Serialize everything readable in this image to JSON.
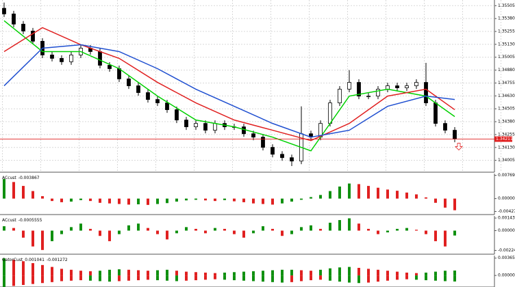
{
  "chart_data": [
    {
      "type": "candlestick",
      "open": [
        1.3548,
        1.35425,
        1.35326,
        1.35259,
        1.3516,
        1.35027,
        1.34994,
        1.34961,
        1.35027,
        1.35093,
        1.3506,
        1.34927,
        1.34894,
        1.34795,
        1.34728,
        1.34662,
        1.34595,
        1.34562,
        1.34496,
        1.34396,
        1.3433,
        1.34363,
        1.34297,
        1.34363,
        1.3433,
        1.3433,
        1.34263,
        1.3423,
        1.34131,
        1.34064,
        1.34031,
        1.33998,
        1.34263,
        1.3423,
        1.34363,
        1.34562,
        1.34695,
        1.34761,
        1.34628,
        1.34628,
        1.34695,
        1.34728,
        1.34708,
        1.34728,
        1.34761,
        1.34562,
        1.34363,
        1.34297
      ],
      "high": [
        1.35535,
        1.35455,
        1.35356,
        1.35289,
        1.3519,
        1.35057,
        1.35024,
        1.35057,
        1.35123,
        1.35123,
        1.3509,
        1.34957,
        1.34924,
        1.34825,
        1.34758,
        1.34692,
        1.34625,
        1.34592,
        1.34526,
        1.34426,
        1.34393,
        1.34393,
        1.34393,
        1.34393,
        1.3436,
        1.3436,
        1.34293,
        1.3426,
        1.34161,
        1.34094,
        1.34061,
        1.34529,
        1.34293,
        1.34393,
        1.34592,
        1.34725,
        1.3488,
        1.34791,
        1.34658,
        1.34725,
        1.34758,
        1.34758,
        1.34758,
        1.34791,
        1.3495,
        1.34592,
        1.34393,
        1.34327
      ],
      "low": [
        1.35395,
        1.35296,
        1.35229,
        1.3513,
        1.34997,
        1.34964,
        1.34931,
        1.34931,
        1.34997,
        1.3503,
        1.34897,
        1.34864,
        1.34765,
        1.34698,
        1.34632,
        1.34565,
        1.34532,
        1.34466,
        1.34366,
        1.343,
        1.343,
        1.34267,
        1.34267,
        1.343,
        1.343,
        1.34233,
        1.342,
        1.34101,
        1.34034,
        1.34001,
        1.3395,
        1.33968,
        1.342,
        1.342,
        1.34333,
        1.34532,
        1.34665,
        1.34598,
        1.34598,
        1.34598,
        1.34665,
        1.34678,
        1.34678,
        1.34698,
        1.34532,
        1.34333,
        1.34267,
        1.34181
      ],
      "close": [
        1.35425,
        1.35326,
        1.35259,
        1.3516,
        1.35027,
        1.34994,
        1.34961,
        1.35027,
        1.35093,
        1.3506,
        1.34927,
        1.34894,
        1.34795,
        1.34728,
        1.34662,
        1.34595,
        1.34562,
        1.34496,
        1.34396,
        1.3433,
        1.34363,
        1.34297,
        1.34363,
        1.3433,
        1.3433,
        1.34263,
        1.3423,
        1.34131,
        1.34064,
        1.34031,
        1.33998,
        1.34263,
        1.3423,
        1.34363,
        1.34562,
        1.34695,
        1.34761,
        1.34628,
        1.34628,
        1.34695,
        1.34728,
        1.34708,
        1.34728,
        1.34761,
        1.34562,
        1.34363,
        1.34297,
        1.34211
      ],
      "line_x": [
        0,
        4,
        8,
        12,
        16,
        20,
        24,
        28,
        32,
        36,
        40,
        44,
        47
      ],
      "lines": [
        {
          "color": "#00d000",
          "values": [
            1.35359,
            1.3506,
            1.3506,
            1.34894,
            1.34628,
            1.34396,
            1.3433,
            1.3423,
            1.34097,
            1.34628,
            1.34695,
            1.34628,
            1.34429
          ]
        },
        {
          "color": "#e02020",
          "values": [
            1.3506,
            1.35292,
            1.35126,
            1.34994,
            1.34761,
            1.34562,
            1.34396,
            1.34297,
            1.34197,
            1.34363,
            1.34628,
            1.34695,
            1.34496
          ]
        },
        {
          "color": "#1f4fd0",
          "values": [
            1.34728,
            1.35093,
            1.35126,
            1.3506,
            1.34894,
            1.34695,
            1.34529,
            1.34363,
            1.3423,
            1.34297,
            1.34529,
            1.34628,
            1.34595
          ]
        }
      ],
      "current_price": 1.34211,
      "ylim": [
        1.3389,
        1.3556
      ],
      "yticks": [
        1.35505,
        {
          "value": 1.3538,
          "label": "1.35380"
        },
        1.35255,
        {
          "value": 1.3513,
          "label": "1.35130"
        },
        1.35005,
        {
          "value": 1.3488,
          "label": "1.34880"
        },
        1.34755,
        {
          "value": 1.3463,
          "label": "1.34630"
        },
        1.34505,
        {
          "value": 1.3438,
          "label": "1.34380"
        },
        1.34255,
        {
          "value": 1.3413,
          "label": "1.34130"
        },
        1.34005
      ],
      "grid": true
    },
    {
      "type": "histogram",
      "title": "ACcust",
      "current": -0.003867,
      "up_color": "#109010",
      "down_color": "#e02020",
      "values": [
        0.0065,
        0.0055,
        0.0042,
        0.0025,
        0.0008,
        -0.0008,
        -0.0012,
        -0.001,
        -0.0005,
        -0.0008,
        -0.0014,
        -0.0016,
        -0.0018,
        -0.002,
        -0.0019,
        -0.0021,
        -0.0018,
        -0.0015,
        -0.001,
        -0.0006,
        -0.0004,
        -0.0006,
        -0.0008,
        -0.0005,
        -0.0009,
        -0.0012,
        -0.0016,
        -0.0018,
        -0.002,
        -0.0016,
        -0.001,
        -0.0004,
        0.0005,
        0.0012,
        0.0025,
        0.004,
        0.005,
        0.0048,
        0.0042,
        0.0036,
        0.003,
        0.0026,
        0.002,
        0.0014,
        0.0004,
        -0.0014,
        -0.003,
        -0.003867
      ],
      "ylim": [
        -0.0053,
        0.0083
      ],
      "yticks": [
        0.007698,
        {
          "value": 0,
          "label": "0.000000"
        },
        -0.004271
      ]
    },
    {
      "type": "histogram",
      "title": "ACcust",
      "current": -0.0005555,
      "up_color": "#109010",
      "down_color": "#e02020",
      "values": [
        0.0005,
        0.0003,
        -0.0008,
        -0.0018,
        -0.0022,
        -0.0012,
        -0.0004,
        0.0004,
        0.0008,
        0.0002,
        -0.0006,
        -0.0012,
        -0.0004,
        0.0006,
        0.0008,
        0.0003,
        -0.0004,
        -0.001,
        -0.0003,
        0.0004,
        0.0002,
        -0.0003,
        0.0003,
        0.0002,
        -0.0004,
        -0.0008,
        -0.0003,
        0.0005,
        0.0002,
        -0.0006,
        -0.0004,
        0.0004,
        0.0006,
        0.0002,
        0.0009,
        0.0012,
        0.0014,
        0.0008,
        0.0002,
        -0.0004,
        -0.0002,
        0.0002,
        0.0003,
        0.0001,
        -0.0004,
        -0.0012,
        -0.0018,
        -0.0005555
      ],
      "ylim": [
        -0.00268,
        0.00167
      ],
      "yticks": [
        {
          "value": 0.001431,
          "label": "0.0014310"
        },
        {
          "value": 0,
          "label": "0.0000000"
        },
        -0.0022492
      ]
    },
    {
      "type": "gator",
      "title": "GatorCust",
      "current": [
        0.001041,
        -0.001272
      ],
      "up_color": "#109010",
      "down_color": "#e02020",
      "series": [
        {
          "values": [
            0.0036,
            0.0033,
            0.003,
            0.0026,
            0.0022,
            0.0018,
            0.0014,
            0.0012,
            0.001,
            0.0009,
            0.001,
            0.0012,
            0.0013,
            0.0012,
            0.0011,
            0.001,
            0.0011,
            0.0012,
            0.001,
            0.0008,
            0.0007,
            0.0006,
            0.0005,
            0.0006,
            0.0007,
            0.0008,
            0.0009,
            0.001,
            0.0011,
            0.0012,
            0.0012,
            0.0011,
            0.001,
            0.0012,
            0.0015,
            0.0017,
            0.0018,
            0.0016,
            0.0014,
            0.0012,
            0.001,
            0.0008,
            0.0006,
            0.0005,
            0.0006,
            0.0008,
            0.001,
            0.001041
          ]
        },
        {
          "values": [
            -0.0024,
            -0.0022,
            -0.002,
            -0.0018,
            -0.0016,
            -0.0014,
            -0.0012,
            -0.0011,
            -0.001,
            -0.0011,
            -0.0012,
            -0.0013,
            -0.0012,
            -0.0011,
            -0.001,
            -0.0009,
            -0.001,
            -0.0011,
            -0.0012,
            -0.0011,
            -0.001,
            -0.0009,
            -0.0008,
            -0.0009,
            -0.001,
            -0.0011,
            -0.0012,
            -0.0013,
            -0.0014,
            -0.0015,
            -0.0014,
            -0.0012,
            -0.001,
            -0.0009,
            -0.0011,
            -0.0013,
            -0.0015,
            -0.0016,
            -0.0015,
            -0.0013,
            -0.0011,
            -0.0009,
            -0.0008,
            -0.0009,
            -0.001,
            -0.0011,
            -0.0012,
            -0.001272
          ]
        }
      ],
      "ylim": [
        -0.00243,
        0.00419
      ],
      "yticks": [
        0.003652,
        {
          "value": 0,
          "label": "0.000000"
        }
      ]
    }
  ]
}
